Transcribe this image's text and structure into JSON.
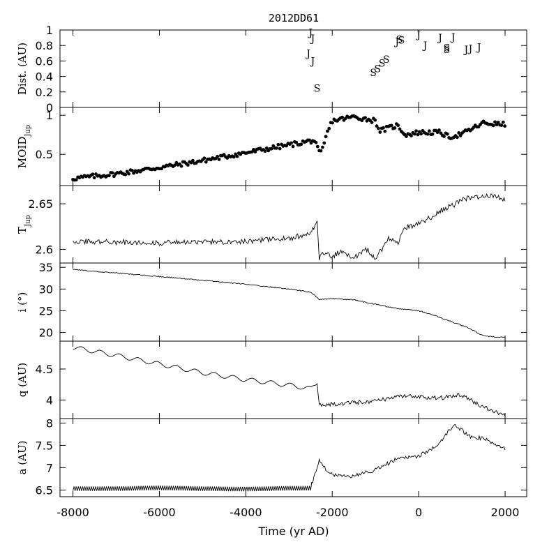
{
  "chart_data": {
    "title": "2012DD61",
    "xlabel": "Time (yr AD)",
    "xlim": [
      -8300,
      2500
    ],
    "xticks": [
      -8000,
      -6000,
      -4000,
      -2000,
      0,
      2000
    ],
    "panels": [
      {
        "id": "dist",
        "type": "scatter",
        "ylabel": "Dist. (AU)",
        "ylim": [
          0,
          1
        ],
        "yticks": [
          0,
          0.2,
          0.4,
          0.6,
          0.8,
          1
        ],
        "yticklabels": [
          "0",
          "0.2",
          "0.4",
          "0.6",
          "0.8",
          "1"
        ],
        "encounters": [
          {
            "planet": "J",
            "t": -2500,
            "d": 0.97
          },
          {
            "planet": "J",
            "t": -2450,
            "d": 0.89
          },
          {
            "planet": "J",
            "t": -2550,
            "d": 0.7
          },
          {
            "planet": "J",
            "t": -2450,
            "d": 0.6
          },
          {
            "planet": "S",
            "t": -2350,
            "d": 0.25
          },
          {
            "planet": "S",
            "t": -1050,
            "d": 0.45
          },
          {
            "planet": "S",
            "t": -950,
            "d": 0.5
          },
          {
            "planet": "S",
            "t": -850,
            "d": 0.57
          },
          {
            "planet": "S",
            "t": -750,
            "d": 0.62
          },
          {
            "planet": "J",
            "t": -500,
            "d": 0.85
          },
          {
            "planet": "S",
            "t": -450,
            "d": 0.88
          },
          {
            "planet": "S",
            "t": -400,
            "d": 0.87
          },
          {
            "planet": "J",
            "t": 0,
            "d": 0.94
          },
          {
            "planet": "J",
            "t": 150,
            "d": 0.8
          },
          {
            "planet": "J",
            "t": 500,
            "d": 0.9
          },
          {
            "planet": "S",
            "t": 650,
            "d": 0.77
          },
          {
            "planet": "S",
            "t": 650,
            "d": 0.75
          },
          {
            "planet": "J",
            "t": 800,
            "d": 0.91
          },
          {
            "planet": "J",
            "t": 1100,
            "d": 0.75
          },
          {
            "planet": "J",
            "t": 1200,
            "d": 0.76
          },
          {
            "planet": "J",
            "t": 1400,
            "d": 0.78
          }
        ]
      },
      {
        "id": "moid",
        "type": "scatter",
        "ylabel": "MOID",
        "ylabel_sub": "Jup",
        "ylim": [
          0.1,
          1.1
        ],
        "yticks": [
          0.5,
          1
        ],
        "yticklabels": [
          "0.5",
          "1"
        ],
        "x": [
          -8000,
          -7000,
          -6000,
          -5000,
          -4000,
          -3000,
          -2420,
          -2300,
          -2000,
          -1500,
          -1000,
          -900,
          -500,
          -300,
          0,
          500,
          700,
          1000,
          1500,
          2000
        ],
        "y": [
          0.19,
          0.25,
          0.33,
          0.42,
          0.52,
          0.62,
          0.68,
          0.52,
          0.93,
          0.98,
          0.93,
          0.8,
          0.87,
          0.75,
          0.78,
          0.78,
          0.72,
          0.76,
          0.9,
          0.88
        ]
      },
      {
        "id": "tjup",
        "type": "line",
        "ylabel": "T",
        "ylabel_sub": "Jup",
        "ylim": [
          2.585,
          2.67
        ],
        "yticks": [
          2.6,
          2.65
        ],
        "yticklabels": [
          "2.6",
          "2.65"
        ],
        "x": [
          -8000,
          -7000,
          -6000,
          -5000,
          -4000,
          -3000,
          -2500,
          -2350,
          -2300,
          -2200,
          -2000,
          -1800,
          -1500,
          -1200,
          -1000,
          -800,
          -700,
          -500,
          -300,
          0,
          300,
          600,
          800,
          1000,
          1200,
          1400,
          1700,
          2000
        ],
        "y": [
          2.609,
          2.608,
          2.607,
          2.608,
          2.609,
          2.612,
          2.617,
          2.63,
          2.59,
          2.596,
          2.592,
          2.598,
          2.591,
          2.6,
          2.59,
          2.604,
          2.612,
          2.606,
          2.624,
          2.628,
          2.636,
          2.645,
          2.648,
          2.654,
          2.657,
          2.658,
          2.659,
          2.654
        ]
      },
      {
        "id": "incl",
        "type": "line",
        "ylabel": "i (°)",
        "ylim": [
          18,
          36
        ],
        "yticks": [
          20,
          25,
          30,
          35
        ],
        "yticklabels": [
          "20",
          "25",
          "30",
          "35"
        ],
        "x": [
          -8000,
          -7000,
          -6000,
          -5000,
          -4000,
          -3000,
          -2500,
          -2400,
          -2300,
          -2000,
          -1500,
          -1000,
          -500,
          0,
          300,
          600,
          900,
          1200,
          1500,
          2000
        ],
        "y": [
          34.5,
          33.7,
          32.9,
          32.0,
          31.1,
          30.0,
          29.3,
          28.5,
          27.6,
          27.8,
          27.5,
          26.5,
          25.5,
          25.0,
          24.2,
          23.0,
          22.0,
          20.8,
          19.2,
          18.8
        ]
      },
      {
        "id": "q",
        "type": "line",
        "ylabel": "q (AU)",
        "ylim": [
          3.7,
          4.95
        ],
        "yticks": [
          4,
          4.5
        ],
        "yticklabels": [
          "4",
          "4.5"
        ],
        "x": [
          -8000,
          -7000,
          -6000,
          -5000,
          -4000,
          -3000,
          -2500,
          -2350,
          -2300,
          -2000,
          -1500,
          -1000,
          -500,
          0,
          500,
          1000,
          1500,
          2000
        ],
        "y": [
          4.85,
          4.72,
          4.58,
          4.44,
          4.33,
          4.24,
          4.18,
          4.28,
          3.92,
          3.93,
          3.96,
          3.98,
          4.05,
          4.06,
          4.03,
          4.08,
          3.88,
          3.76
        ]
      },
      {
        "id": "a",
        "type": "line",
        "ylabel": "a (AU)",
        "ylim": [
          6.35,
          8.1
        ],
        "yticks": [
          6.5,
          7,
          7.5,
          8
        ],
        "yticklabels": [
          "6.5",
          "7",
          "7.5",
          "8"
        ],
        "x": [
          -8000,
          -7000,
          -6000,
          -5000,
          -4000,
          -3000,
          -2500,
          -2300,
          -2100,
          -1800,
          -1500,
          -1000,
          -500,
          0,
          500,
          800,
          900,
          1200,
          1500,
          2000
        ],
        "y": [
          6.53,
          6.53,
          6.55,
          6.53,
          6.52,
          6.54,
          6.54,
          7.18,
          6.9,
          6.8,
          6.82,
          6.95,
          7.2,
          7.25,
          7.55,
          7.95,
          7.9,
          7.7,
          7.65,
          7.42
        ]
      }
    ]
  }
}
